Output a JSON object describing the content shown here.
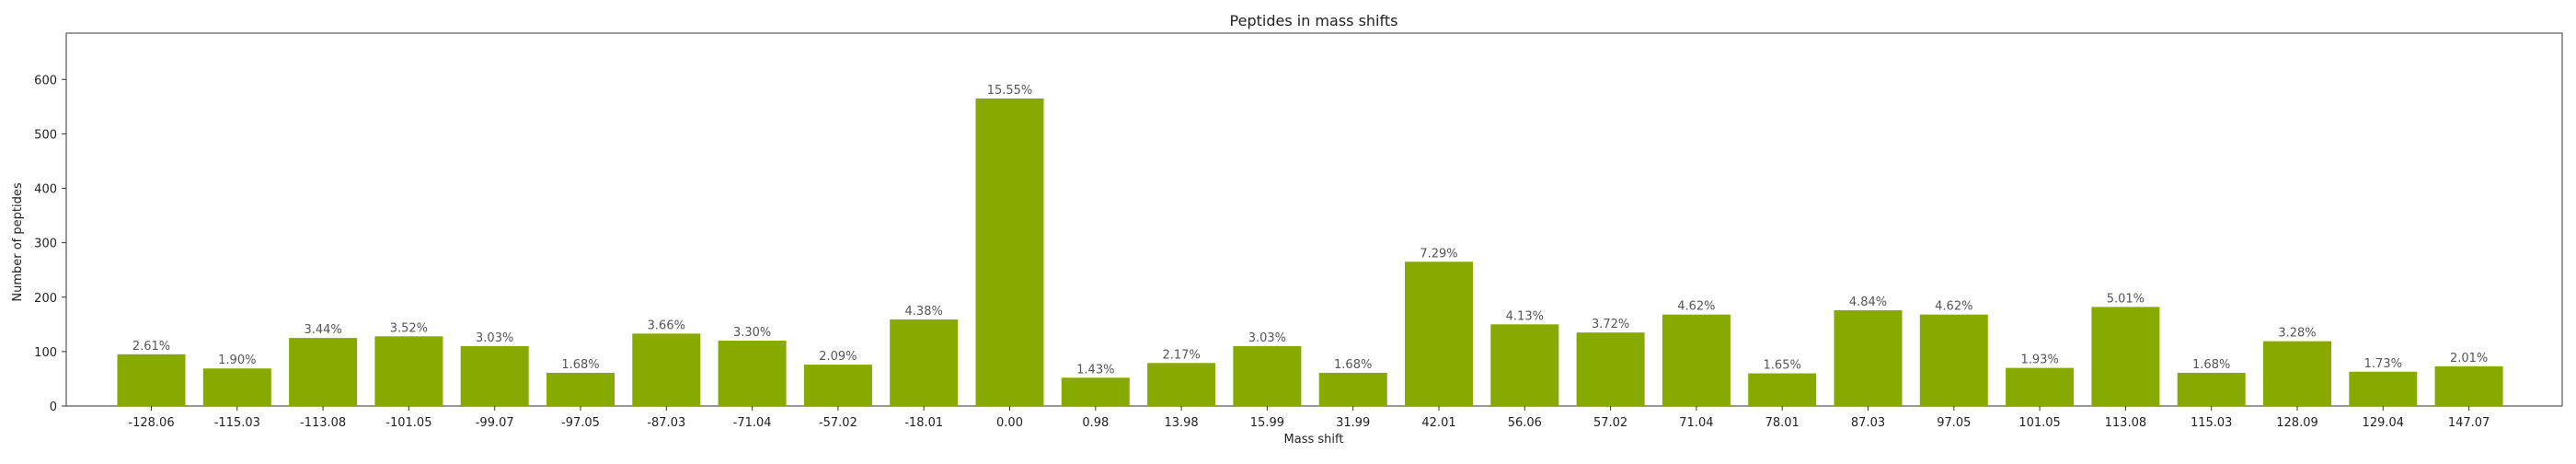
{
  "chart_data": {
    "type": "bar",
    "title": "Peptides in mass shifts",
    "xlabel": "Mass shift",
    "ylabel": "Number of peptides",
    "ylim": [
      0,
      685
    ],
    "yticks": [
      0,
      100,
      200,
      300,
      400,
      500,
      600
    ],
    "grid": false,
    "bar_color": "#88aa00",
    "categories": [
      "-128.06",
      "-115.03",
      "-113.08",
      "-101.05",
      "-99.07",
      "-97.05",
      "-87.03",
      "-71.04",
      "-57.02",
      "-18.01",
      "0.00",
      "0.98",
      "13.98",
      "15.99",
      "31.99",
      "42.01",
      "56.06",
      "57.02",
      "71.04",
      "78.01",
      "87.03",
      "97.05",
      "101.05",
      "113.08",
      "115.03",
      "128.09",
      "129.04",
      "147.07"
    ],
    "values": [
      95,
      69,
      125,
      128,
      110,
      61,
      133,
      120,
      76,
      159,
      565,
      52,
      79,
      110,
      61,
      265,
      150,
      135,
      168,
      60,
      176,
      168,
      70,
      182,
      61,
      119,
      63,
      73
    ],
    "labels": [
      "2.61%",
      "1.90%",
      "3.44%",
      "3.52%",
      "3.03%",
      "1.68%",
      "3.66%",
      "3.30%",
      "2.09%",
      "4.38%",
      "15.55%",
      "1.43%",
      "2.17%",
      "3.03%",
      "1.68%",
      "7.29%",
      "4.13%",
      "3.72%",
      "4.62%",
      "1.65%",
      "4.84%",
      "4.62%",
      "1.93%",
      "5.01%",
      "1.68%",
      "3.28%",
      "1.73%",
      "2.01%"
    ]
  }
}
